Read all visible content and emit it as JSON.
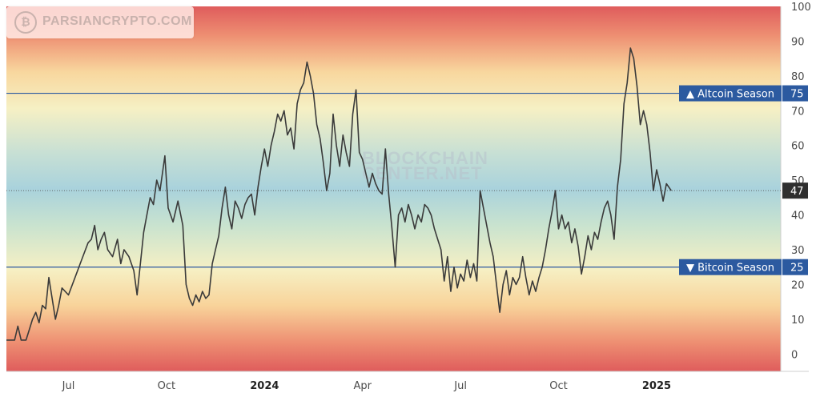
{
  "watermark": {
    "logo_text": "PARSIANCRYPTO.COM",
    "center_line1": "BLOCKCHAIN",
    "center_line2": "CENTER.NET"
  },
  "chart_data": {
    "type": "line",
    "title": "",
    "xlabel": "",
    "ylabel": "",
    "ylim": [
      -5,
      100
    ],
    "y_ticks": [
      0,
      10,
      20,
      30,
      40,
      50,
      60,
      70,
      80,
      90,
      100
    ],
    "x_ticks": [
      {
        "label": "Jul",
        "bold": false,
        "pos": 3
      },
      {
        "label": "Oct",
        "bold": false,
        "pos": 6
      },
      {
        "label": "2024",
        "bold": true,
        "pos": 9
      },
      {
        "label": "Apr",
        "bold": false,
        "pos": 12
      },
      {
        "label": "Jul",
        "bold": false,
        "pos": 15
      },
      {
        "label": "Oct",
        "bold": false,
        "pos": 18
      },
      {
        "label": "2025",
        "bold": true,
        "pos": 21
      }
    ],
    "xlim": [
      1.1,
      24.8
    ],
    "reference_lines": [
      {
        "label": "▲ Altcoin Season",
        "value": 75,
        "color": "#2c5aa0"
      },
      {
        "label": "▼ Bitcoin Season",
        "value": 25,
        "color": "#2c5aa0"
      }
    ],
    "current_value": 47,
    "background_gradient": "red at extremes, orange/yellow, blue-green in the middle",
    "series": [
      {
        "color": "#3a3a3a",
        "points": [
          [
            1.1,
            4
          ],
          [
            1.35,
            4
          ],
          [
            1.45,
            8
          ],
          [
            1.55,
            4
          ],
          [
            1.7,
            4
          ],
          [
            1.8,
            7
          ],
          [
            1.9,
            10
          ],
          [
            2.0,
            12
          ],
          [
            2.1,
            9
          ],
          [
            2.2,
            14
          ],
          [
            2.3,
            13
          ],
          [
            2.4,
            22
          ],
          [
            2.5,
            16
          ],
          [
            2.6,
            10
          ],
          [
            2.7,
            14
          ],
          [
            2.8,
            19
          ],
          [
            3.0,
            17
          ],
          [
            3.2,
            22
          ],
          [
            3.4,
            27
          ],
          [
            3.6,
            32
          ],
          [
            3.7,
            33
          ],
          [
            3.8,
            37
          ],
          [
            3.9,
            30
          ],
          [
            4.0,
            33
          ],
          [
            4.1,
            35
          ],
          [
            4.2,
            30
          ],
          [
            4.35,
            28
          ],
          [
            4.5,
            33
          ],
          [
            4.6,
            26
          ],
          [
            4.7,
            30
          ],
          [
            4.85,
            28
          ],
          [
            5.0,
            24
          ],
          [
            5.1,
            17
          ],
          [
            5.2,
            26
          ],
          [
            5.3,
            35
          ],
          [
            5.4,
            40
          ],
          [
            5.5,
            45
          ],
          [
            5.6,
            43
          ],
          [
            5.7,
            50
          ],
          [
            5.8,
            47
          ],
          [
            5.95,
            57
          ],
          [
            6.05,
            42
          ],
          [
            6.2,
            38
          ],
          [
            6.35,
            44
          ],
          [
            6.5,
            37
          ],
          [
            6.6,
            20
          ],
          [
            6.7,
            16
          ],
          [
            6.8,
            14
          ],
          [
            6.9,
            17
          ],
          [
            7.0,
            15
          ],
          [
            7.1,
            18
          ],
          [
            7.2,
            16
          ],
          [
            7.3,
            17
          ],
          [
            7.4,
            26
          ],
          [
            7.5,
            30
          ],
          [
            7.6,
            34
          ],
          [
            7.7,
            42
          ],
          [
            7.8,
            48
          ],
          [
            7.9,
            40
          ],
          [
            8.0,
            36
          ],
          [
            8.1,
            44
          ],
          [
            8.2,
            42
          ],
          [
            8.3,
            39
          ],
          [
            8.4,
            43
          ],
          [
            8.5,
            45
          ],
          [
            8.6,
            46
          ],
          [
            8.7,
            40
          ],
          [
            8.8,
            48
          ],
          [
            8.9,
            54
          ],
          [
            9.0,
            59
          ],
          [
            9.1,
            54
          ],
          [
            9.2,
            60
          ],
          [
            9.3,
            64
          ],
          [
            9.4,
            69
          ],
          [
            9.5,
            67
          ],
          [
            9.6,
            70
          ],
          [
            9.7,
            63
          ],
          [
            9.8,
            65
          ],
          [
            9.9,
            59
          ],
          [
            10.0,
            72
          ],
          [
            10.1,
            76
          ],
          [
            10.2,
            78
          ],
          [
            10.3,
            84
          ],
          [
            10.4,
            80
          ],
          [
            10.5,
            75
          ],
          [
            10.6,
            66
          ],
          [
            10.7,
            62
          ],
          [
            10.8,
            55
          ],
          [
            10.9,
            47
          ],
          [
            11.0,
            52
          ],
          [
            11.1,
            69
          ],
          [
            11.2,
            60
          ],
          [
            11.3,
            54
          ],
          [
            11.4,
            63
          ],
          [
            11.5,
            58
          ],
          [
            11.6,
            54
          ],
          [
            11.7,
            69
          ],
          [
            11.8,
            76
          ],
          [
            11.9,
            58
          ],
          [
            12.0,
            56
          ],
          [
            12.1,
            52
          ],
          [
            12.2,
            48
          ],
          [
            12.3,
            52
          ],
          [
            12.4,
            49
          ],
          [
            12.5,
            47
          ],
          [
            12.6,
            46
          ],
          [
            12.7,
            59
          ],
          [
            12.8,
            46
          ],
          [
            12.9,
            36
          ],
          [
            13.0,
            25
          ],
          [
            13.1,
            40
          ],
          [
            13.2,
            42
          ],
          [
            13.3,
            38
          ],
          [
            13.4,
            43
          ],
          [
            13.5,
            40
          ],
          [
            13.6,
            36
          ],
          [
            13.7,
            40
          ],
          [
            13.8,
            38
          ],
          [
            13.9,
            43
          ],
          [
            14.0,
            42
          ],
          [
            14.1,
            40
          ],
          [
            14.2,
            36
          ],
          [
            14.3,
            33
          ],
          [
            14.4,
            30
          ],
          [
            14.5,
            21
          ],
          [
            14.6,
            28
          ],
          [
            14.7,
            18
          ],
          [
            14.8,
            25
          ],
          [
            14.9,
            19
          ],
          [
            15.0,
            23
          ],
          [
            15.1,
            21
          ],
          [
            15.2,
            27
          ],
          [
            15.3,
            22
          ],
          [
            15.4,
            26
          ],
          [
            15.5,
            21
          ],
          [
            15.6,
            47
          ],
          [
            15.7,
            42
          ],
          [
            15.8,
            37
          ],
          [
            15.9,
            32
          ],
          [
            16.0,
            28
          ],
          [
            16.1,
            20
          ],
          [
            16.2,
            12
          ],
          [
            16.3,
            20
          ],
          [
            16.4,
            24
          ],
          [
            16.5,
            17
          ],
          [
            16.6,
            22
          ],
          [
            16.7,
            20
          ],
          [
            16.8,
            22
          ],
          [
            16.9,
            28
          ],
          [
            17.0,
            22
          ],
          [
            17.1,
            17
          ],
          [
            17.2,
            21
          ],
          [
            17.3,
            18
          ],
          [
            17.4,
            22
          ],
          [
            17.5,
            25
          ],
          [
            17.6,
            30
          ],
          [
            17.7,
            36
          ],
          [
            17.8,
            41
          ],
          [
            17.9,
            47
          ],
          [
            18.0,
            36
          ],
          [
            18.1,
            40
          ],
          [
            18.2,
            36
          ],
          [
            18.3,
            38
          ],
          [
            18.4,
            32
          ],
          [
            18.5,
            36
          ],
          [
            18.6,
            31
          ],
          [
            18.7,
            23
          ],
          [
            18.8,
            28
          ],
          [
            18.9,
            34
          ],
          [
            19.0,
            30
          ],
          [
            19.1,
            35
          ],
          [
            19.2,
            33
          ],
          [
            19.3,
            38
          ],
          [
            19.4,
            42
          ],
          [
            19.5,
            44
          ],
          [
            19.6,
            40
          ],
          [
            19.7,
            33
          ],
          [
            19.8,
            48
          ],
          [
            19.9,
            56
          ],
          [
            20.0,
            72
          ],
          [
            20.1,
            78
          ],
          [
            20.2,
            88
          ],
          [
            20.3,
            85
          ],
          [
            20.4,
            77
          ],
          [
            20.5,
            66
          ],
          [
            20.6,
            70
          ],
          [
            20.7,
            66
          ],
          [
            20.8,
            58
          ],
          [
            20.9,
            47
          ],
          [
            21.0,
            53
          ],
          [
            21.1,
            49
          ],
          [
            21.2,
            44
          ],
          [
            21.3,
            49
          ],
          [
            21.45,
            47
          ]
        ]
      }
    ]
  }
}
